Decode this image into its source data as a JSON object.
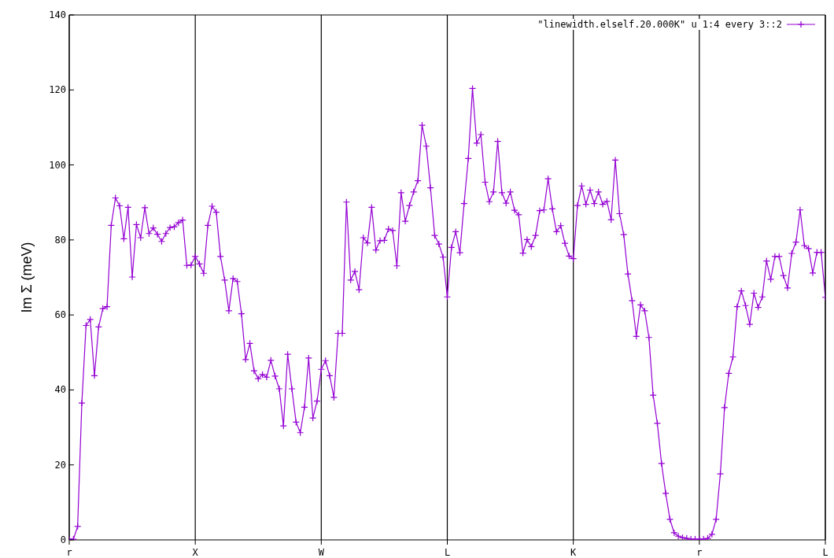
{
  "chart_data": {
    "type": "line",
    "ylabel": "Im Σ (meV)",
    "ylim": [
      0,
      140
    ],
    "categories": [
      "r",
      null,
      null,
      null,
      null,
      null,
      null,
      null,
      null,
      null,
      null,
      null,
      null,
      null,
      null,
      null,
      null,
      null,
      null,
      null,
      null,
      null,
      null,
      null,
      null,
      null,
      null,
      null,
      null,
      null,
      "X",
      null,
      null,
      null,
      null,
      null,
      null,
      null,
      null,
      null,
      null,
      null,
      null,
      null,
      null,
      null,
      null,
      null,
      null,
      null,
      null,
      null,
      null,
      null,
      null,
      null,
      null,
      null,
      null,
      null,
      "W",
      null,
      null,
      null,
      null,
      null,
      null,
      null,
      null,
      null,
      null,
      null,
      null,
      null,
      null,
      null,
      null,
      null,
      null,
      null,
      null,
      null,
      null,
      null,
      null,
      null,
      null,
      null,
      null,
      null,
      "L",
      null,
      null,
      null,
      null,
      null,
      null,
      null,
      null,
      null,
      null,
      null,
      null,
      null,
      null,
      null,
      null,
      null,
      null,
      null,
      null,
      null,
      null,
      null,
      null,
      null,
      null,
      null,
      null,
      null,
      "K",
      null,
      null,
      null,
      null,
      null,
      null,
      null,
      null,
      null,
      null,
      null,
      null,
      null,
      null,
      null,
      null,
      null,
      null,
      null,
      null,
      null,
      null,
      null,
      null,
      null,
      null,
      null,
      null,
      null,
      "r",
      null,
      null,
      null,
      null,
      null,
      null,
      null,
      null,
      null,
      null,
      null,
      null,
      null,
      null,
      null,
      null,
      null,
      null,
      null,
      null,
      null,
      null,
      null,
      null,
      null,
      null,
      null,
      null,
      null,
      "L"
    ],
    "yticks": [
      0,
      20,
      40,
      60,
      80,
      100,
      120,
      140
    ],
    "grid": "x",
    "legend": "top right",
    "marker": "cross",
    "line_style": "solid",
    "series": [
      {
        "name": "\"linewidth.elself.20.000K\" u 1:4 every 3::2",
        "color": "#9400d3",
        "values": [
          0.2,
          0.2,
          3.6,
          36.5,
          57.2,
          58.8,
          43.8,
          56.8,
          61.7,
          62.2,
          83.9,
          91.2,
          89.1,
          80.3,
          88.7,
          70.1,
          84.1,
          80.6,
          88.6,
          81.7,
          83.2,
          81.5,
          79.6,
          81.7,
          83.3,
          83.5,
          84.6,
          85.3,
          73.2,
          73.3,
          75.6,
          73.6,
          71.1,
          83.9,
          89.0,
          87.4,
          75.6,
          69.3,
          61.1,
          69.7,
          68.9,
          60.3,
          48.1,
          52.4,
          45.1,
          43.0,
          44.1,
          43.4,
          47.9,
          43.7,
          40.3,
          30.4,
          49.5,
          40.3,
          31.4,
          28.6,
          35.4,
          48.5,
          32.5,
          37.0,
          45.5,
          47.8,
          43.8,
          38.0,
          55.1,
          55.1,
          90.1,
          69.3,
          71.6,
          66.7,
          80.6,
          79.2,
          88.7,
          77.3,
          79.8,
          79.9,
          82.9,
          82.5,
          73.1,
          92.6,
          85.0,
          89.2,
          92.8,
          95.8,
          110.6,
          105.0,
          93.9,
          81.2,
          78.9,
          75.4,
          64.8,
          78.0,
          82.2,
          76.6,
          89.7,
          101.7,
          120.4,
          105.8,
          108.1,
          95.4,
          90.2,
          92.8,
          106.3,
          92.6,
          89.8,
          92.8,
          87.9,
          86.7,
          76.5,
          80.1,
          78.2,
          81.2,
          87.8,
          88.0,
          96.3,
          88.3,
          82.2,
          83.8,
          79.1,
          75.7,
          75.0,
          89.2,
          94.4,
          89.5,
          93.3,
          89.7,
          92.8,
          89.5,
          90.3,
          85.4,
          101.3,
          87.0,
          81.4,
          70.9,
          63.8,
          54.3,
          62.7,
          61.1,
          54.0,
          38.6,
          31.1,
          20.4,
          12.4,
          5.5,
          1.9,
          1.0,
          0.6,
          0.4,
          0.2,
          0.2,
          0.2,
          0.2,
          0.4,
          1.5,
          5.5,
          17.6,
          35.3,
          44.4,
          48.8,
          62.2,
          66.4,
          62.5,
          57.5,
          65.8,
          62.0,
          64.8,
          74.4,
          69.5,
          75.6,
          75.6,
          70.5,
          67.2,
          76.4,
          79.4,
          88.0,
          78.5,
          77.7,
          71.2,
          76.7,
          76.7,
          64.7
        ]
      }
    ]
  }
}
